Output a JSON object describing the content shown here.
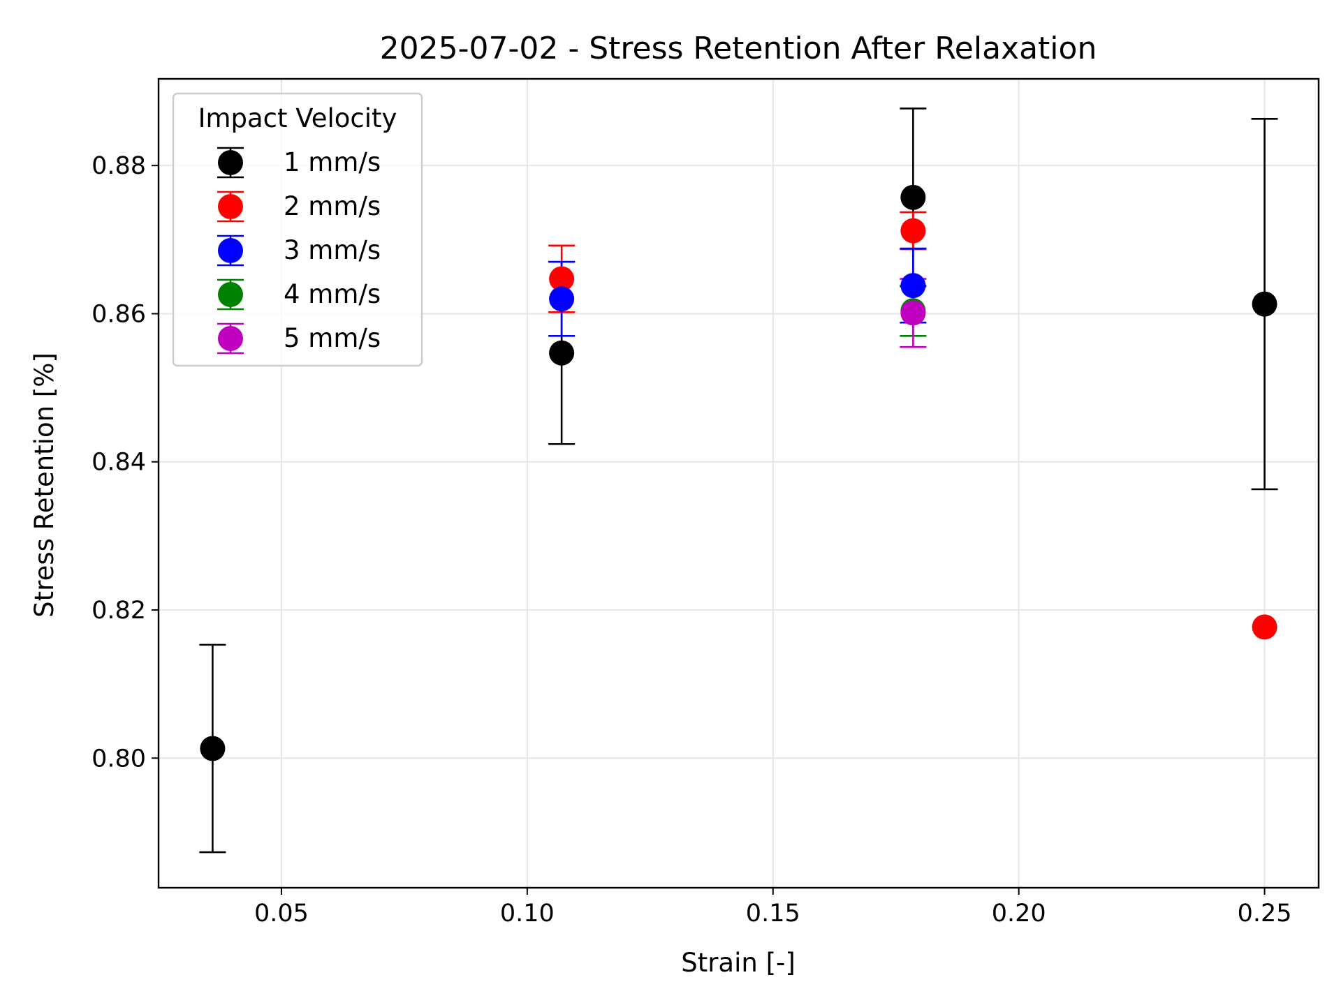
{
  "chart_data": {
    "type": "scatter",
    "title": "2025-07-02 - Stress Retention After Relaxation",
    "xlabel": "Strain [-]",
    "ylabel": "Stress Retention [%]",
    "xlim": [
      0.025,
      0.261
    ],
    "ylim": [
      0.7825,
      0.8917
    ],
    "xticks": [
      0.05,
      0.1,
      0.15,
      0.2,
      0.25
    ],
    "xtick_labels": [
      "0.05",
      "0.10",
      "0.15",
      "0.20",
      "0.25"
    ],
    "yticks": [
      0.8,
      0.82,
      0.84,
      0.86,
      0.88
    ],
    "ytick_labels": [
      "0.80",
      "0.82",
      "0.84",
      "0.86",
      "0.88"
    ],
    "grid": true,
    "legend": {
      "title": "Impact Velocity",
      "position": "upper-left"
    },
    "series": [
      {
        "name": "1 mm/s",
        "color": "#000000",
        "points": [
          {
            "x": 0.036,
            "y": 0.8013,
            "err": 0.014
          },
          {
            "x": 0.107,
            "y": 0.8547,
            "err": 0.0123
          },
          {
            "x": 0.1785,
            "y": 0.8757,
            "err": 0.012
          },
          {
            "x": 0.25,
            "y": 0.8613,
            "err": 0.025
          }
        ]
      },
      {
        "name": "2 mm/s",
        "color": "#ff0000",
        "points": [
          {
            "x": 0.107,
            "y": 0.8647,
            "err": 0.0045
          },
          {
            "x": 0.1785,
            "y": 0.8712,
            "err": 0.0025
          },
          {
            "x": 0.25,
            "y": 0.8177,
            "err": 0
          }
        ]
      },
      {
        "name": "3 mm/s",
        "color": "#0000ff",
        "points": [
          {
            "x": 0.107,
            "y": 0.862,
            "err": 0.005
          },
          {
            "x": 0.1785,
            "y": 0.8638,
            "err": 0.005
          }
        ]
      },
      {
        "name": "4 mm/s",
        "color": "#008000",
        "points": [
          {
            "x": 0.1785,
            "y": 0.8604,
            "err": 0.0034
          }
        ]
      },
      {
        "name": "5 mm/s",
        "color": "#bf00bf",
        "points": [
          {
            "x": 0.1785,
            "y": 0.8601,
            "err": 0.0046
          }
        ]
      }
    ]
  }
}
